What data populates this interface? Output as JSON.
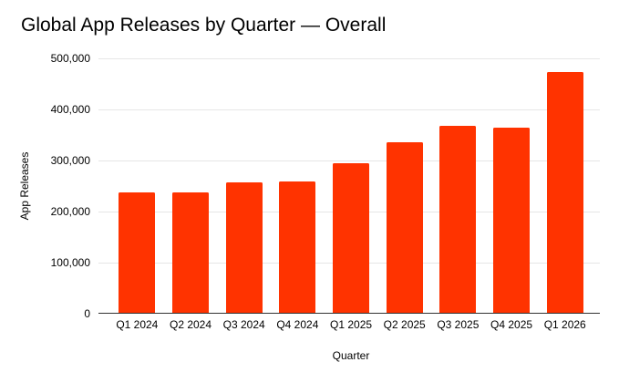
{
  "chart_data": {
    "type": "bar",
    "title": "Global App Releases by Quarter — Overall",
    "xlabel": "Quarter",
    "ylabel": "App Releases",
    "categories": [
      "Q1 2024",
      "Q2 2024",
      "Q3 2024",
      "Q4 2024",
      "Q1 2025",
      "Q2 2025",
      "Q3 2025",
      "Q4 2025",
      "Q1 2026"
    ],
    "values": [
      238000,
      237000,
      257000,
      259000,
      295000,
      336000,
      368000,
      365000,
      473000
    ],
    "ylim": [
      0,
      500000
    ],
    "y_tick_labels": [
      "0",
      "100,000",
      "200,000",
      "300,000",
      "400,000",
      "500,000"
    ],
    "grid": true,
    "legend_position": "none",
    "bar_color": "#ff3300",
    "gridline_color": "#e6e6e6",
    "axis_line_color": "#333333",
    "text_color": "#000000",
    "background_color": "#ffffff"
  }
}
